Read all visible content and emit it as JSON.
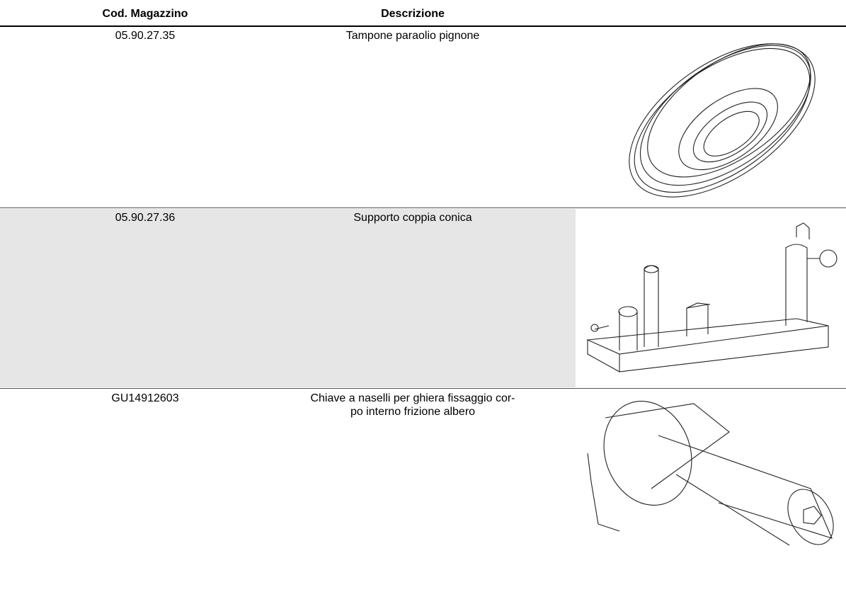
{
  "header": {
    "columns": [
      "Cod. Magazzino",
      "Descrizione"
    ]
  },
  "table": {
    "rows": [
      [
        "05.90.27.35",
        "Tampone paraolio pignone"
      ],
      [
        "05.90.27.36",
        "Supporto coppia conica"
      ],
      [
        "GU14912603",
        "Chiave a naselli per ghiera fissaggio cor-\npo interno frizione albero"
      ]
    ]
  }
}
